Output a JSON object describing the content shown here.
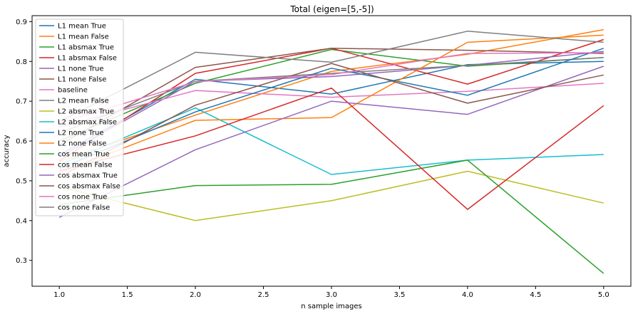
{
  "chart_data": {
    "type": "line",
    "title": "Total (eigen=[5,-5])",
    "xlabel": "n sample images",
    "ylabel": "accuracy",
    "xlim": [
      0.8,
      5.2
    ],
    "ylim": [
      0.235,
      0.915
    ],
    "x_ticks": [
      "1.0",
      "1.5",
      "2.0",
      "2.5",
      "3.0",
      "3.5",
      "4.0",
      "4.5",
      "5.0"
    ],
    "y_ticks": [
      "0.3",
      "0.4",
      "0.5",
      "0.6",
      "0.7",
      "0.8",
      "0.9"
    ],
    "grid": false,
    "legend_position": "top-left",
    "x": [
      1,
      2,
      3,
      4,
      5
    ],
    "series": [
      {
        "name": "L1 mean True",
        "color": "#1f77b4",
        "values": [
          0.565,
          0.755,
          0.718,
          0.792,
          0.8
        ]
      },
      {
        "name": "L1 mean False",
        "color": "#ff7f0e",
        "values": [
          0.548,
          0.665,
          0.775,
          0.818,
          0.88
        ]
      },
      {
        "name": "L1 absmax True",
        "color": "#2ca02c",
        "values": [
          0.6,
          0.745,
          0.83,
          0.788,
          0.81
        ]
      },
      {
        "name": "L1 absmax False",
        "color": "#d62728",
        "values": [
          0.55,
          0.77,
          0.833,
          0.743,
          0.855
        ]
      },
      {
        "name": "L1 none True",
        "color": "#9467bd",
        "values": [
          0.56,
          0.75,
          0.762,
          0.79,
          0.825
        ]
      },
      {
        "name": "L1 none False",
        "color": "#8c564b",
        "values": [
          0.59,
          0.785,
          0.833,
          0.828,
          0.82
        ]
      },
      {
        "name": "baseline",
        "color": "#e377c2",
        "values": [
          0.635,
          0.727,
          0.71,
          0.725,
          0.745
        ]
      },
      {
        "name": "L2 mean False",
        "color": "#7f7f7f",
        "values": [
          0.62,
          0.75,
          0.77,
          0.79,
          0.81
        ]
      },
      {
        "name": "L2 absmax True",
        "color": "#bcbd22",
        "values": [
          0.485,
          0.4,
          0.45,
          0.524,
          0.444
        ]
      },
      {
        "name": "L2 absmax False",
        "color": "#17becf",
        "values": [
          0.54,
          0.683,
          0.516,
          0.552,
          0.566
        ]
      },
      {
        "name": "L2 none True",
        "color": "#1f77b4",
        "values": [
          0.53,
          0.673,
          0.783,
          0.715,
          0.833
        ]
      },
      {
        "name": "L2 none False",
        "color": "#ff7f0e",
        "values": [
          0.52,
          0.652,
          0.659,
          0.848,
          0.866
        ]
      },
      {
        "name": "cos mean True",
        "color": "#2ca02c",
        "values": [
          0.44,
          0.488,
          0.491,
          0.552,
          0.267
        ]
      },
      {
        "name": "cos mean False",
        "color": "#d62728",
        "values": [
          0.525,
          0.613,
          0.733,
          0.428,
          0.689
        ]
      },
      {
        "name": "cos absmax True",
        "color": "#9467bd",
        "values": [
          0.408,
          0.578,
          0.7,
          0.667,
          0.788
        ]
      },
      {
        "name": "cos absmax False",
        "color": "#8c564b",
        "values": [
          0.51,
          0.69,
          0.795,
          0.695,
          0.766
        ]
      },
      {
        "name": "cos none True",
        "color": "#e377c2",
        "values": [
          0.645,
          0.749,
          0.767,
          0.82,
          0.822
        ]
      },
      {
        "name": "cos none False",
        "color": "#7f7f7f",
        "values": [
          0.648,
          0.823,
          0.798,
          0.876,
          0.848
        ]
      }
    ]
  }
}
